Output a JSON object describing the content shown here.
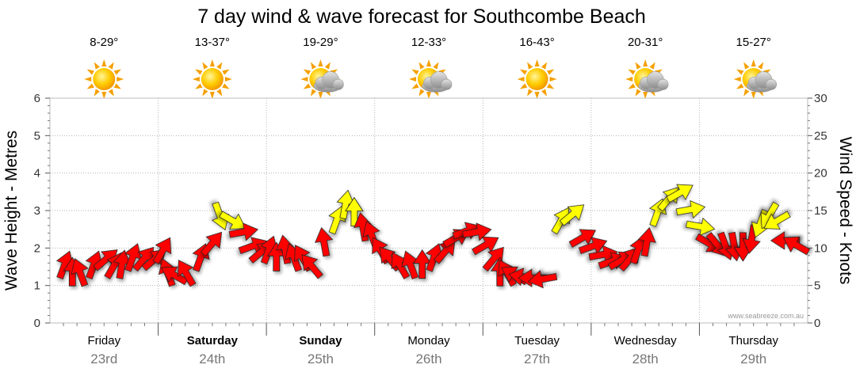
{
  "chart_data": {
    "type": "line",
    "title": "7 day wind & wave forecast for Southcombe Beach",
    "ylabel_left": "Wave Height - Metres",
    "ylabel_right": "Wind Speed - Knots",
    "y_left_ticks": [
      "0",
      "1",
      "2",
      "3",
      "4",
      "5",
      "6"
    ],
    "y_right_ticks": [
      "0",
      "5",
      "10",
      "15",
      "20",
      "25",
      "30"
    ],
    "ylim_left": [
      0,
      6
    ],
    "ylim_right": [
      0,
      30
    ],
    "grid": true,
    "days": [
      {
        "day": "Friday",
        "date": "23rd",
        "bold": false,
        "temps": "8-29°",
        "weather": "sunny"
      },
      {
        "day": "Saturday",
        "date": "24th",
        "bold": true,
        "temps": "13-37°",
        "weather": "sunny"
      },
      {
        "day": "Sunday",
        "date": "25th",
        "bold": true,
        "temps": "19-29°",
        "weather": "partly-cloudy"
      },
      {
        "day": "Monday",
        "date": "26th",
        "bold": false,
        "temps": "12-33°",
        "weather": "partly-cloudy"
      },
      {
        "day": "Tuesday",
        "date": "27th",
        "bold": false,
        "temps": "16-43°",
        "weather": "sunny"
      },
      {
        "day": "Wednesday",
        "date": "28th",
        "bold": false,
        "temps": "20-31°",
        "weather": "partly-cloudy"
      },
      {
        "day": "Thursday",
        "date": "29th",
        "bold": false,
        "temps": "15-27°",
        "weather": "partly-cloudy"
      }
    ],
    "series": [
      {
        "name": "Wind Speed (knots)",
        "unit": "knots",
        "axis": "right",
        "step_hours": 3,
        "colors": {
          "strong": "#ff0000",
          "light": "#ffff00"
        },
        "values": [
          7,
          6,
          6,
          7,
          8,
          7,
          7,
          8,
          8,
          8,
          9,
          6,
          6,
          6,
          8,
          10,
          15,
          14,
          12,
          10,
          9,
          9,
          8,
          9,
          8,
          8,
          7,
          10,
          13,
          15,
          14,
          12,
          11,
          9,
          8,
          7,
          7,
          7,
          8,
          9,
          11,
          12,
          12,
          10,
          8,
          6,
          6,
          6,
          6,
          6,
          6,
          13,
          14,
          11,
          10,
          9,
          8,
          8,
          8,
          9,
          10,
          14,
          16,
          17,
          15,
          13,
          11,
          11,
          11,
          11,
          11,
          12,
          14,
          15,
          14,
          11,
          10
        ]
      },
      {
        "name": "Wind Direction (degrees)",
        "unit": "degrees",
        "values": [
          200,
          180,
          160,
          200,
          230,
          210,
          190,
          200,
          220,
          230,
          210,
          160,
          120,
          150,
          200,
          220,
          340,
          300,
          260,
          250,
          230,
          200,
          180,
          170,
          160,
          150,
          140,
          170,
          200,
          190,
          180,
          170,
          160,
          150,
          140,
          150,
          160,
          180,
          200,
          220,
          240,
          250,
          260,
          240,
          220,
          180,
          150,
          120,
          100,
          90,
          80,
          210,
          230,
          240,
          250,
          260,
          250,
          240,
          220,
          200,
          190,
          200,
          220,
          240,
          260,
          280,
          300,
          320,
          340,
          350,
          0,
          10,
          20,
          30,
          60,
          90,
          120
        ]
      }
    ],
    "credit": "www.seabreeze.com.au"
  }
}
